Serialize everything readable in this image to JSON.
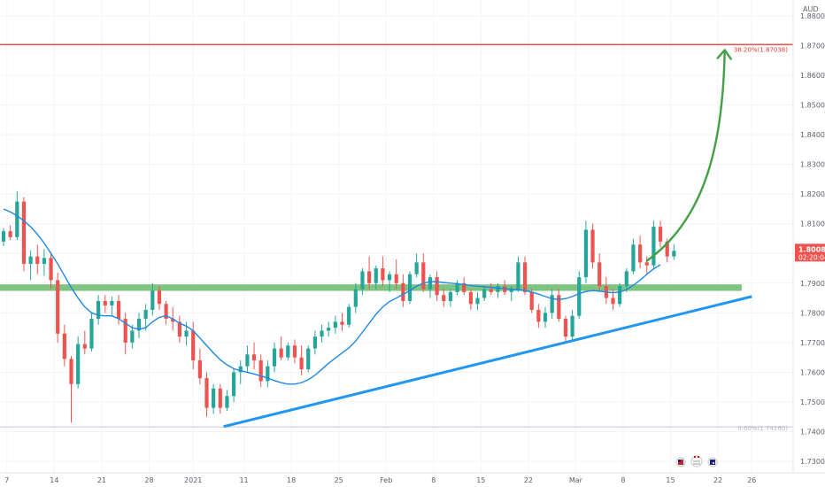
{
  "chart_data": {
    "type": "candlestick",
    "currency": "AUD",
    "y_axis": {
      "min": 1.725,
      "max": 1.888,
      "ticks": [
        "1.88000",
        "1.87000",
        "1.86000",
        "1.85000",
        "1.84000",
        "1.83000",
        "1.82000",
        "1.81000",
        "1.80000",
        "1.79000",
        "1.78000",
        "1.77000",
        "1.76000",
        "1.75000",
        "1.74000",
        "1.73000"
      ]
    },
    "x_axis": {
      "tick_labels": [
        "7",
        "14",
        "21",
        "28",
        "2021",
        "11",
        "18",
        "25",
        "Feb",
        "8",
        "15",
        "22",
        "Mar",
        "8",
        "15",
        "22",
        "26"
      ],
      "tick_positions": [
        0.5,
        7.5,
        14.5,
        21.5,
        28,
        35.5,
        42.5,
        49.5,
        56.5,
        63.5,
        70.5,
        77.5,
        84.5,
        91.5,
        98.5,
        105.5,
        110.5
      ]
    },
    "last_price": {
      "value": "1.80088",
      "countdown": "02:20:04",
      "color": "#ef5350"
    },
    "fib_levels": [
      {
        "label": "38.20%(1.87038)",
        "value": 1.87038,
        "color": "#e53935"
      },
      {
        "label": "0.00%(1.74160)",
        "value": 1.7416,
        "color": "#b2b5be"
      }
    ],
    "support_zone": {
      "low": 1.7874,
      "high": 1.7896,
      "color": "#66bb6a"
    },
    "trendline": {
      "from": [
        32.5,
        1.7417
      ],
      "to": [
        110.5,
        1.7855
      ],
      "color": "#2196f3"
    },
    "projection_arrow": {
      "from": [
        95,
        1.7975
      ],
      "to": [
        106.5,
        1.8685
      ],
      "color": "#43a047"
    },
    "moving_average_color": "#1e88e5",
    "up_color": "#26a69a",
    "down_color": "#ef5350",
    "candles": [
      [
        1.804,
        1.8085,
        1.8025,
        1.8075
      ],
      [
        1.8075,
        1.8095,
        1.8045,
        1.8055
      ],
      [
        1.8055,
        1.821,
        1.8045,
        1.8175
      ],
      [
        1.8175,
        1.819,
        1.794,
        1.7965
      ],
      [
        1.7965,
        1.801,
        1.791,
        1.799
      ],
      [
        1.799,
        1.803,
        1.793,
        1.7965
      ],
      [
        1.7965,
        1.8015,
        1.7925,
        1.7985
      ],
      [
        1.7985,
        1.8005,
        1.788,
        1.791
      ],
      [
        1.791,
        1.7935,
        1.77,
        1.773
      ],
      [
        1.773,
        1.776,
        1.762,
        1.7645
      ],
      [
        1.7645,
        1.7655,
        1.743,
        1.756
      ],
      [
        1.756,
        1.772,
        1.7545,
        1.7695
      ],
      [
        1.7695,
        1.774,
        1.766,
        1.768
      ],
      [
        1.768,
        1.78,
        1.767,
        1.778
      ],
      [
        1.778,
        1.786,
        1.776,
        1.784
      ],
      [
        1.784,
        1.786,
        1.78,
        1.7825
      ],
      [
        1.7825,
        1.7855,
        1.779,
        1.784
      ],
      [
        1.784,
        1.786,
        1.776,
        1.778
      ],
      [
        1.778,
        1.78,
        1.766,
        1.77
      ],
      [
        1.77,
        1.776,
        1.768,
        1.774
      ],
      [
        1.774,
        1.78,
        1.7715,
        1.778
      ],
      [
        1.778,
        1.783,
        1.774,
        1.781
      ],
      [
        1.781,
        1.79,
        1.779,
        1.7875
      ],
      [
        1.7875,
        1.789,
        1.781,
        1.783
      ],
      [
        1.783,
        1.784,
        1.776,
        1.778
      ],
      [
        1.778,
        1.782,
        1.774,
        1.777
      ],
      [
        1.777,
        1.779,
        1.77,
        1.772
      ],
      [
        1.772,
        1.777,
        1.769,
        1.774
      ],
      [
        1.774,
        1.777,
        1.761,
        1.764
      ],
      [
        1.764,
        1.768,
        1.756,
        1.758
      ],
      [
        1.758,
        1.76,
        1.745,
        1.748
      ],
      [
        1.748,
        1.756,
        1.746,
        1.7545
      ],
      [
        1.7545,
        1.756,
        1.746,
        1.748
      ],
      [
        1.748,
        1.754,
        1.747,
        1.752
      ],
      [
        1.752,
        1.761,
        1.75,
        1.76
      ],
      [
        1.76,
        1.764,
        1.756,
        1.762
      ],
      [
        1.762,
        1.769,
        1.76,
        1.766
      ],
      [
        1.766,
        1.77,
        1.761,
        1.764
      ],
      [
        1.764,
        1.766,
        1.755,
        1.757
      ],
      [
        1.757,
        1.764,
        1.755,
        1.762
      ],
      [
        1.762,
        1.77,
        1.76,
        1.768
      ],
      [
        1.768,
        1.772,
        1.764,
        1.765
      ],
      [
        1.765,
        1.77,
        1.764,
        1.769
      ],
      [
        1.769,
        1.771,
        1.763,
        1.765
      ],
      [
        1.765,
        1.769,
        1.759,
        1.761
      ],
      [
        1.761,
        1.769,
        1.76,
        1.768
      ],
      [
        1.768,
        1.774,
        1.766,
        1.772
      ],
      [
        1.772,
        1.776,
        1.77,
        1.774
      ],
      [
        1.774,
        1.777,
        1.772,
        1.775
      ],
      [
        1.775,
        1.779,
        1.773,
        1.777
      ],
      [
        1.777,
        1.78,
        1.774,
        1.776
      ],
      [
        1.776,
        1.783,
        1.775,
        1.782
      ],
      [
        1.782,
        1.79,
        1.78,
        1.788
      ],
      [
        1.788,
        1.795,
        1.786,
        1.794
      ],
      [
        1.794,
        1.799,
        1.788,
        1.79
      ],
      [
        1.79,
        1.796,
        1.788,
        1.795
      ],
      [
        1.795,
        1.799,
        1.789,
        1.791
      ],
      [
        1.791,
        1.794,
        1.787,
        1.793
      ],
      [
        1.793,
        1.798,
        1.788,
        1.79
      ],
      [
        1.79,
        1.793,
        1.782,
        1.784
      ],
      [
        1.784,
        1.794,
        1.783,
        1.793
      ],
      [
        1.793,
        1.8,
        1.792,
        1.797
      ],
      [
        1.797,
        1.8,
        1.787,
        1.788
      ],
      [
        1.788,
        1.793,
        1.785,
        1.792
      ],
      [
        1.792,
        1.794,
        1.784,
        1.786
      ],
      [
        1.786,
        1.788,
        1.782,
        1.784
      ],
      [
        1.784,
        1.788,
        1.782,
        1.787
      ],
      [
        1.787,
        1.791,
        1.786,
        1.79
      ],
      [
        1.79,
        1.792,
        1.786,
        1.787
      ],
      [
        1.787,
        1.788,
        1.781,
        1.783
      ],
      [
        1.783,
        1.787,
        1.781,
        1.785
      ],
      [
        1.785,
        1.789,
        1.784,
        1.788
      ],
      [
        1.788,
        1.79,
        1.786,
        1.787
      ],
      [
        1.787,
        1.79,
        1.785,
        1.789
      ],
      [
        1.789,
        1.791,
        1.786,
        1.787
      ],
      [
        1.787,
        1.789,
        1.784,
        1.788
      ],
      [
        1.788,
        1.799,
        1.787,
        1.797
      ],
      [
        1.797,
        1.799,
        1.786,
        1.787
      ],
      [
        1.787,
        1.788,
        1.78,
        1.781
      ],
      [
        1.781,
        1.783,
        1.775,
        1.777
      ],
      [
        1.777,
        1.782,
        1.775,
        1.78
      ],
      [
        1.78,
        1.788,
        1.778,
        1.786
      ],
      [
        1.786,
        1.788,
        1.777,
        1.778
      ],
      [
        1.778,
        1.779,
        1.77,
        1.772
      ],
      [
        1.772,
        1.781,
        1.771,
        1.779
      ],
      [
        1.779,
        1.794,
        1.778,
        1.792
      ],
      [
        1.792,
        1.811,
        1.79,
        1.808
      ],
      [
        1.808,
        1.81,
        1.795,
        1.797
      ],
      [
        1.797,
        1.8,
        1.787,
        1.789
      ],
      [
        1.789,
        1.792,
        1.783,
        1.785
      ],
      [
        1.785,
        1.788,
        1.781,
        1.783
      ],
      [
        1.783,
        1.79,
        1.782,
        1.789
      ],
      [
        1.789,
        1.795,
        1.787,
        1.794
      ],
      [
        1.794,
        1.805,
        1.793,
        1.803
      ],
      [
        1.803,
        1.806,
        1.795,
        1.797
      ],
      [
        1.797,
        1.799,
        1.793,
        1.796
      ],
      [
        1.796,
        1.811,
        1.795,
        1.809
      ],
      [
        1.809,
        1.811,
        1.802,
        1.804
      ],
      [
        1.804,
        1.805,
        1.797,
        1.799
      ],
      [
        1.799,
        1.803,
        1.798,
        1.8009
      ]
    ],
    "ma": [
      1.815,
      1.814,
      1.8127,
      1.811,
      1.809,
      1.8065,
      1.8035,
      1.8,
      1.7965,
      1.7925,
      1.7885,
      1.785,
      1.782,
      1.78,
      1.7792,
      1.779,
      1.779,
      1.778,
      1.7765,
      1.775,
      1.7745,
      1.775,
      1.777,
      1.7785,
      1.779,
      1.778,
      1.7765,
      1.7755,
      1.774,
      1.7715,
      1.769,
      1.7665,
      1.7642,
      1.7625,
      1.7612,
      1.7605,
      1.76,
      1.7594,
      1.7588,
      1.758,
      1.7572,
      1.7565,
      1.756,
      1.756,
      1.7565,
      1.7575,
      1.759,
      1.761,
      1.763,
      1.7648,
      1.7665,
      1.7682,
      1.7705,
      1.7735,
      1.7765,
      1.7795,
      1.782,
      1.7838,
      1.785,
      1.7862,
      1.7875,
      1.789,
      1.79,
      1.7905,
      1.7905,
      1.7902,
      1.79,
      1.7898,
      1.7895,
      1.7892,
      1.789,
      1.7888,
      1.7886,
      1.7884,
      1.7882,
      1.788,
      1.7878,
      1.7875,
      1.787,
      1.7863,
      1.7855,
      1.7848,
      1.7845,
      1.7848,
      1.7855,
      1.7865,
      1.7872,
      1.7875,
      1.7873,
      1.787,
      1.7868,
      1.787,
      1.7878,
      1.7893,
      1.791,
      1.793,
      1.7948,
      1.7962
    ],
    "icons": [
      "flag-icon",
      "calendar-icon",
      "flag-icon"
    ]
  }
}
